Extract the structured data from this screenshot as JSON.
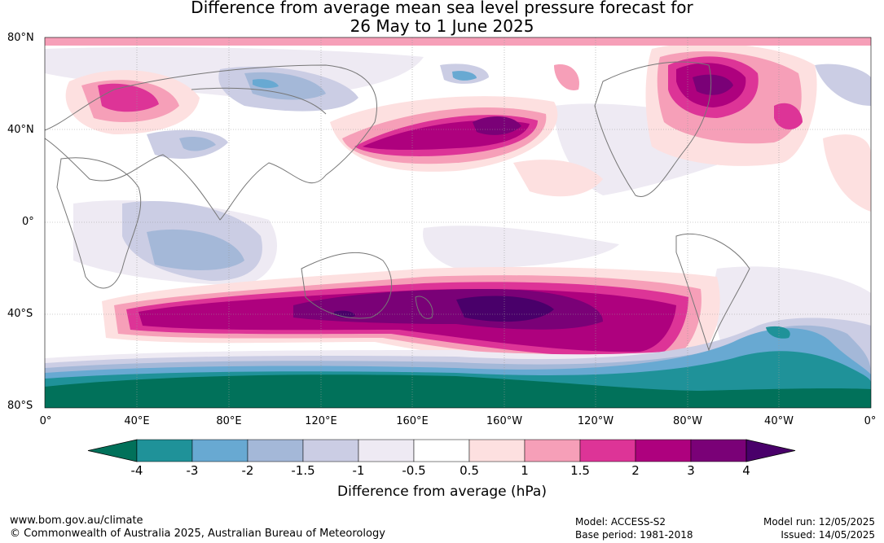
{
  "title_line1": "Difference from average mean sea level pressure forecast for",
  "title_line2": "26 May to 1 June 2025",
  "lat_labels": [
    "80°N",
    "40°N",
    "0°",
    "40°S",
    "80°S"
  ],
  "lon_labels": [
    "0°",
    "40°E",
    "80°E",
    "120°E",
    "160°E",
    "160°W",
    "120°W",
    "80°W",
    "40°W",
    "0°"
  ],
  "colorbar": {
    "ticks": [
      "-4",
      "-3",
      "-2",
      "-1.5",
      "-1",
      "-0.5",
      "0.5",
      "1",
      "1.5",
      "2",
      "3",
      "4"
    ],
    "colors": [
      "#01715a",
      "#1f9299",
      "#68a9d2",
      "#a4b8d8",
      "#cbcde4",
      "#eeeaf3",
      "#ffffff",
      "#fde0e0",
      "#f69fb8",
      "#dd3497",
      "#ae017e",
      "#7a0177",
      "#49006a"
    ],
    "label": "Difference from average (hPa)"
  },
  "footer": {
    "website": "www.bom.gov.au/climate",
    "copyright": "© Commonwealth of Australia 2025, Australian Bureau of Meteorology",
    "model": "Model: ACCESS-S2",
    "base_period": "Base period: 1981-2018",
    "model_run": "Model run: 12/05/2025",
    "issued": "Issued: 14/05/2025"
  }
}
